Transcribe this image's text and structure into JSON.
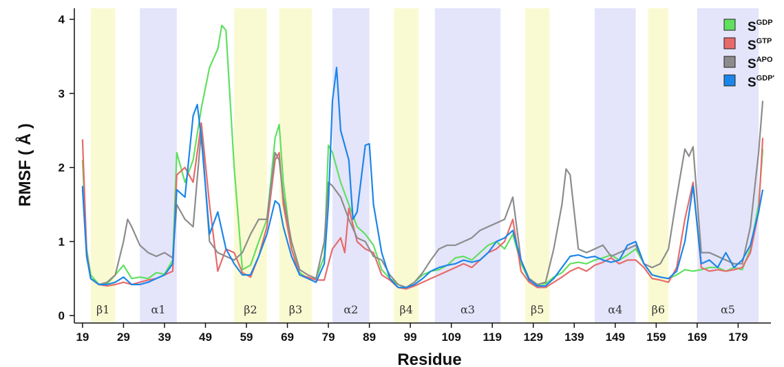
{
  "chart_data": {
    "type": "line",
    "title": "",
    "xlabel": "Residue",
    "ylabel": "RMSF ( Å )",
    "xlim": [
      17,
      187
    ],
    "ylim": [
      -0.1,
      4.15
    ],
    "x_ticks": [
      19,
      29,
      39,
      49,
      59,
      69,
      79,
      89,
      99,
      109,
      119,
      129,
      139,
      149,
      159,
      169,
      179
    ],
    "y_ticks": [
      0,
      1,
      2,
      3,
      4
    ],
    "legend_position": "top-right",
    "regions": [
      {
        "label": "β1",
        "start": 21,
        "end": 27,
        "kind": "strand",
        "color": "#fafad2"
      },
      {
        "label": "α1",
        "start": 33,
        "end": 42,
        "kind": "helix",
        "color": "#e4e4fb"
      },
      {
        "label": "β2",
        "start": 56,
        "end": 64,
        "kind": "strand",
        "color": "#fafad2"
      },
      {
        "label": "β3",
        "start": 67,
        "end": 75,
        "kind": "strand",
        "color": "#fafad2"
      },
      {
        "label": "α2",
        "start": 80,
        "end": 89,
        "kind": "helix",
        "color": "#e4e4fb"
      },
      {
        "label": "β4",
        "start": 95,
        "end": 101,
        "kind": "strand",
        "color": "#fafad2"
      },
      {
        "label": "α3",
        "start": 105,
        "end": 121,
        "kind": "helix",
        "color": "#e4e4fb"
      },
      {
        "label": "β5",
        "start": 127,
        "end": 133,
        "kind": "strand",
        "color": "#fafad2"
      },
      {
        "label": "α4",
        "start": 144,
        "end": 154,
        "kind": "helix",
        "color": "#e4e4fb"
      },
      {
        "label": "β6",
        "start": 157,
        "end": 162,
        "kind": "strand",
        "color": "#fafad2"
      },
      {
        "label": "α5",
        "start": 169,
        "end": 184,
        "kind": "helix",
        "color": "#e4e4fb"
      }
    ],
    "series": [
      {
        "name": "S",
        "sup": "GDP",
        "color": "#5fe05f",
        "x": [
          19,
          20,
          21,
          23,
          25,
          27,
          29,
          31,
          33,
          35,
          37,
          39,
          41,
          42,
          44,
          46,
          48,
          50,
          52,
          53,
          54,
          56,
          58,
          60,
          62,
          64,
          66,
          67,
          68,
          70,
          72,
          74,
          76,
          78,
          79,
          80,
          82,
          84,
          86,
          88,
          90,
          92,
          94,
          96,
          98,
          100,
          102,
          104,
          106,
          108,
          110,
          112,
          114,
          116,
          118,
          120,
          122,
          124,
          126,
          128,
          130,
          132,
          134,
          136,
          138,
          140,
          142,
          144,
          146,
          148,
          150,
          152,
          154,
          156,
          158,
          160,
          162,
          164,
          166,
          168,
          170,
          172,
          174,
          176,
          178,
          180,
          182,
          184,
          185
        ],
        "y": [
          2.1,
          0.9,
          0.55,
          0.42,
          0.43,
          0.55,
          0.68,
          0.5,
          0.52,
          0.5,
          0.58,
          0.56,
          0.75,
          2.2,
          1.8,
          2.1,
          2.8,
          3.35,
          3.6,
          3.92,
          3.85,
          2.0,
          0.62,
          0.68,
          1.0,
          1.3,
          2.4,
          2.58,
          1.8,
          0.9,
          0.58,
          0.5,
          0.5,
          0.8,
          2.3,
          2.2,
          1.8,
          1.5,
          1.2,
          1.1,
          0.95,
          0.62,
          0.5,
          0.42,
          0.38,
          0.45,
          0.55,
          0.6,
          0.62,
          0.68,
          0.78,
          0.8,
          0.75,
          0.85,
          0.95,
          1.0,
          0.9,
          1.1,
          0.7,
          0.48,
          0.42,
          0.43,
          0.52,
          0.58,
          0.7,
          0.72,
          0.7,
          0.75,
          0.78,
          0.82,
          0.75,
          0.82,
          0.9,
          0.7,
          0.55,
          0.52,
          0.5,
          0.55,
          0.62,
          0.6,
          0.62,
          0.65,
          0.65,
          0.6,
          0.65,
          0.62,
          0.9,
          1.5,
          2.25
        ]
      },
      {
        "name": "S",
        "sup": "GTP",
        "color": "#e86a6a",
        "x": [
          19,
          20,
          21,
          23,
          25,
          27,
          29,
          31,
          33,
          35,
          37,
          39,
          41,
          42,
          44,
          46,
          48,
          50,
          52,
          54,
          56,
          58,
          60,
          62,
          64,
          66,
          67,
          68,
          70,
          72,
          74,
          76,
          78,
          79,
          80,
          82,
          83,
          84,
          86,
          88,
          90,
          92,
          94,
          96,
          98,
          100,
          102,
          104,
          106,
          108,
          110,
          112,
          114,
          116,
          118,
          120,
          122,
          124,
          126,
          128,
          130,
          132,
          134,
          136,
          138,
          140,
          142,
          144,
          146,
          148,
          150,
          152,
          154,
          156,
          158,
          160,
          162,
          164,
          166,
          168,
          170,
          172,
          174,
          176,
          178,
          180,
          182,
          184,
          185
        ],
        "y": [
          2.38,
          0.85,
          0.5,
          0.42,
          0.4,
          0.42,
          0.45,
          0.42,
          0.45,
          0.48,
          0.5,
          0.55,
          0.6,
          1.9,
          2.0,
          1.8,
          2.6,
          1.5,
          0.6,
          0.9,
          0.85,
          0.58,
          0.52,
          0.8,
          1.2,
          2.1,
          2.2,
          1.5,
          0.9,
          0.55,
          0.52,
          0.48,
          0.48,
          0.7,
          0.9,
          1.05,
          0.85,
          1.45,
          1.0,
          0.9,
          0.85,
          0.55,
          0.48,
          0.38,
          0.36,
          0.4,
          0.45,
          0.5,
          0.55,
          0.6,
          0.65,
          0.7,
          0.65,
          0.75,
          0.85,
          0.9,
          1.0,
          1.3,
          0.6,
          0.45,
          0.38,
          0.38,
          0.45,
          0.52,
          0.6,
          0.65,
          0.6,
          0.68,
          0.72,
          0.78,
          0.7,
          0.75,
          0.75,
          0.65,
          0.5,
          0.48,
          0.45,
          0.65,
          1.3,
          1.8,
          0.65,
          0.6,
          0.62,
          0.6,
          0.62,
          0.65,
          0.85,
          1.4,
          2.4
        ]
      },
      {
        "name": "S",
        "sup": "APO",
        "color": "#8c8c8c",
        "x": [
          19,
          20,
          21,
          23,
          25,
          27,
          29,
          30,
          31,
          33,
          35,
          37,
          39,
          41,
          42,
          44,
          46,
          48,
          50,
          52,
          54,
          56,
          58,
          60,
          62,
          64,
          66,
          67,
          68,
          70,
          72,
          74,
          76,
          78,
          79,
          80,
          82,
          84,
          86,
          88,
          90,
          92,
          94,
          96,
          98,
          100,
          102,
          104,
          106,
          108,
          110,
          112,
          114,
          116,
          118,
          120,
          122,
          124,
          126,
          128,
          130,
          132,
          134,
          136,
          137,
          138,
          140,
          142,
          144,
          146,
          148,
          150,
          152,
          154,
          156,
          158,
          160,
          162,
          164,
          166,
          167,
          168,
          170,
          172,
          174,
          176,
          178,
          180,
          182,
          184,
          185
        ],
        "y": [
          1.7,
          0.8,
          0.5,
          0.42,
          0.45,
          0.55,
          1.0,
          1.3,
          1.2,
          0.95,
          0.85,
          0.8,
          0.85,
          0.78,
          1.5,
          1.3,
          1.2,
          2.5,
          1.0,
          0.85,
          0.8,
          0.75,
          0.85,
          1.1,
          1.3,
          1.3,
          2.2,
          2.1,
          1.6,
          1.0,
          0.62,
          0.55,
          0.5,
          1.0,
          1.8,
          1.75,
          1.6,
          1.3,
          1.05,
          1.0,
          0.8,
          0.75,
          0.55,
          0.42,
          0.38,
          0.45,
          0.58,
          0.75,
          0.9,
          0.95,
          0.95,
          1.0,
          1.05,
          1.15,
          1.2,
          1.25,
          1.3,
          1.6,
          0.75,
          0.5,
          0.42,
          0.45,
          0.9,
          1.5,
          1.98,
          1.9,
          0.9,
          0.85,
          0.9,
          0.95,
          0.8,
          0.85,
          0.9,
          0.95,
          0.7,
          0.65,
          0.7,
          0.9,
          1.6,
          2.25,
          2.15,
          2.28,
          0.85,
          0.85,
          0.8,
          0.75,
          0.7,
          0.7,
          1.2,
          2.2,
          2.9
        ]
      },
      {
        "name": "S",
        "sup": "GDP'",
        "color": "#1a86ea",
        "x": [
          19,
          20,
          21,
          23,
          25,
          27,
          29,
          31,
          33,
          35,
          37,
          39,
          41,
          42,
          44,
          46,
          47,
          48,
          50,
          52,
          54,
          56,
          58,
          60,
          62,
          64,
          66,
          67,
          68,
          70,
          72,
          74,
          76,
          78,
          79,
          80,
          81,
          82,
          84,
          85,
          86,
          88,
          89,
          90,
          92,
          94,
          96,
          98,
          100,
          102,
          104,
          106,
          108,
          110,
          112,
          114,
          116,
          118,
          120,
          122,
          124,
          126,
          128,
          130,
          132,
          134,
          136,
          138,
          140,
          142,
          144,
          146,
          148,
          150,
          152,
          154,
          156,
          158,
          160,
          162,
          164,
          166,
          168,
          170,
          172,
          174,
          176,
          178,
          180,
          182,
          184,
          185
        ],
        "y": [
          1.75,
          0.8,
          0.5,
          0.42,
          0.42,
          0.45,
          0.52,
          0.42,
          0.42,
          0.45,
          0.5,
          0.55,
          0.7,
          1.7,
          1.6,
          2.7,
          2.85,
          2.4,
          1.1,
          1.4,
          0.9,
          0.7,
          0.55,
          0.55,
          0.8,
          1.1,
          1.55,
          1.5,
          1.2,
          0.8,
          0.55,
          0.5,
          0.45,
          0.7,
          1.5,
          2.9,
          3.35,
          2.5,
          2.1,
          1.3,
          1.4,
          2.3,
          2.32,
          1.5,
          0.85,
          0.5,
          0.38,
          0.38,
          0.42,
          0.5,
          0.6,
          0.65,
          0.68,
          0.7,
          0.75,
          0.72,
          0.75,
          0.85,
          1.0,
          1.05,
          1.15,
          0.75,
          0.48,
          0.4,
          0.4,
          0.5,
          0.65,
          0.8,
          0.82,
          0.78,
          0.8,
          0.75,
          0.72,
          0.75,
          0.95,
          1.0,
          0.7,
          0.55,
          0.52,
          0.5,
          0.6,
          1.0,
          1.75,
          0.7,
          0.75,
          0.65,
          0.85,
          0.65,
          0.75,
          0.95,
          1.4,
          1.7
        ]
      }
    ]
  }
}
